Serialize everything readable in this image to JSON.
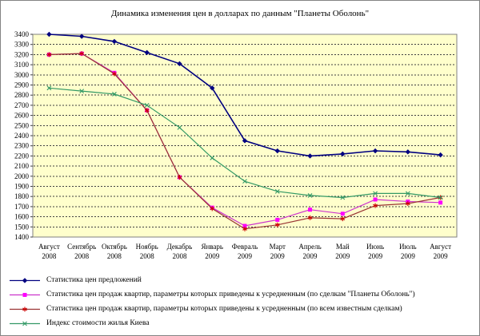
{
  "title": "Динамика изменения цен в долларах по данным \"Планеты Оболонь\"",
  "chart_data": {
    "type": "line",
    "title": "Динамика изменения цен в долларах по данным \"Планеты Оболонь\"",
    "ylim": [
      1400,
      3400
    ],
    "ytick_step": 100,
    "grid": "horizontal-dashed",
    "legend_position": "bottom-left",
    "plot_bg_color": "#FFFFCC",
    "categories": [
      [
        "Август",
        "2008"
      ],
      [
        "Сентябрь",
        "2008"
      ],
      [
        "Октябрь",
        "2008"
      ],
      [
        "Ноябрь",
        "2008"
      ],
      [
        "Декабрь",
        "2008"
      ],
      [
        "Январь",
        "2009"
      ],
      [
        "Февраль",
        "2009"
      ],
      [
        "Март",
        "2009"
      ],
      [
        "Апрель",
        "2009"
      ],
      [
        "Май",
        "2009"
      ],
      [
        "Июнь",
        "2009"
      ],
      [
        "Июль",
        "2009"
      ],
      [
        "Август",
        "2009"
      ]
    ],
    "series": [
      {
        "name": "Статистика цен предложений",
        "marker": "diamond",
        "line_color": "#000080",
        "marker_color": "#000080",
        "values": [
          3400,
          3380,
          3330,
          3220,
          3110,
          2870,
          2350,
          2250,
          2200,
          2220,
          2250,
          2240,
          2210
        ]
      },
      {
        "name": "Статистика цен продаж квартир, параметры которых приведены к усредненным (по сделкам \"Планеты Оболонь\")",
        "marker": "square",
        "line_color": "#CC33CC",
        "marker_color": "#FF00FF",
        "values": [
          3200,
          3210,
          3020,
          2650,
          1990,
          1690,
          1510,
          1570,
          1670,
          1630,
          1770,
          1750,
          1740
        ]
      },
      {
        "name": "Статистика цен продаж квартир, параметры которых приведены к усредненным (по всем известным сделкам)",
        "marker": "star",
        "line_color": "#993333",
        "marker_color": "#CC0000",
        "values": [
          3200,
          3210,
          3010,
          2650,
          1990,
          1680,
          1480,
          1520,
          1590,
          1580,
          1710,
          1730,
          1790
        ]
      },
      {
        "name": "Индекс стоимости жилья Киева",
        "marker": "x",
        "line_color": "#339966",
        "marker_color": "#339966",
        "values": [
          2870,
          2840,
          2810,
          2700,
          2480,
          2180,
          1950,
          1850,
          1810,
          1790,
          1830,
          1830,
          1790
        ]
      }
    ]
  }
}
